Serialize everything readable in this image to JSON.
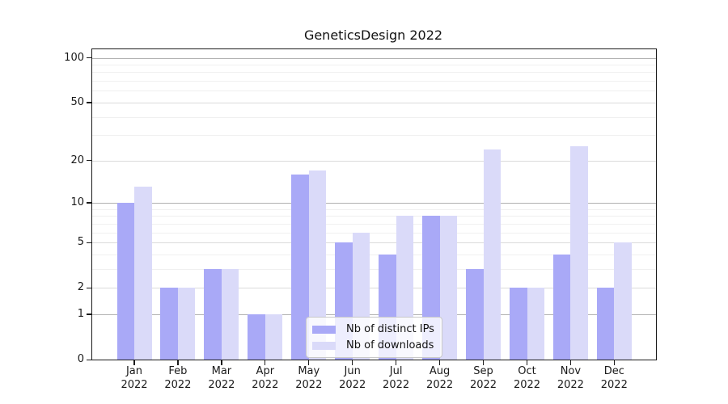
{
  "chart_data": {
    "type": "bar",
    "title": "GeneticsDesign 2022",
    "categories": [
      "Jan",
      "Feb",
      "Mar",
      "Apr",
      "May",
      "Jun",
      "Jul",
      "Aug",
      "Sep",
      "Oct",
      "Nov",
      "Dec"
    ],
    "category_year": "2022",
    "series": [
      {
        "name": "Nb of distinct IPs",
        "color": "#a9a9f7",
        "values": [
          10,
          2,
          3,
          1,
          16,
          5,
          4,
          8,
          3,
          2,
          4,
          2
        ]
      },
      {
        "name": "Nb of downloads",
        "color": "#dadaf9",
        "values": [
          13,
          2,
          3,
          1,
          17,
          6,
          8,
          8,
          24,
          2,
          25,
          5
        ]
      }
    ],
    "yscale": "log1p",
    "ylim": [
      0,
      114
    ],
    "yticks": [
      0,
      1,
      2,
      5,
      10,
      20,
      50,
      100
    ],
    "minor_yticks": [
      3,
      4,
      6,
      7,
      8,
      9,
      30,
      40,
      60,
      70,
      80,
      90
    ],
    "grid": "on",
    "legend_position": "lower-center-inside",
    "colors": {
      "decade_gridline": "#b1b1b1",
      "labeled_gridline": "#dbdbdb",
      "minor_gridline": "#f0f0f0",
      "axis": "#1a1a1a",
      "text": "#1a1a1a"
    }
  }
}
